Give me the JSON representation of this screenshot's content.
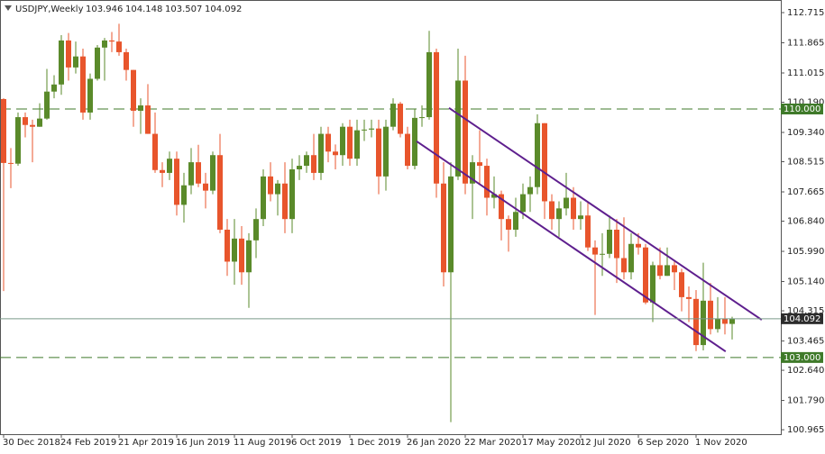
{
  "chart_data": {
    "type": "candlestick",
    "symbol": "USDJPY,Weekly",
    "categories": [
      "30 Dec 2018",
      null,
      null,
      null,
      null,
      null,
      null,
      null,
      "24 Feb 2019",
      null,
      null,
      null,
      null,
      null,
      null,
      null,
      "21 Apr 2019",
      null,
      null,
      null,
      null,
      null,
      null,
      null,
      "16 Jun 2019",
      null,
      null,
      null,
      null,
      null,
      null,
      null,
      "11 Aug 2019",
      null,
      null,
      null,
      null,
      null,
      null,
      null,
      "6 Oct 2019",
      null,
      null,
      null,
      null,
      null,
      null,
      null,
      "1 Dec 2019",
      null,
      null,
      null,
      null,
      null,
      null,
      null,
      "26 Jan 2020",
      null,
      null,
      null,
      null,
      null,
      null,
      null,
      "22 Mar 2020",
      null,
      null,
      null,
      null,
      null,
      null,
      null,
      "17 May 2020",
      null,
      null,
      null,
      null,
      null,
      null,
      null,
      "12 Jul 2020",
      null,
      null,
      null,
      null,
      null,
      null,
      null,
      "6 Sep 2020",
      null,
      null,
      null,
      null,
      null,
      null,
      null,
      "1 Nov 2020",
      null,
      null,
      null,
      null,
      null
    ],
    "open": [
      110.28,
      108.48,
      108.46,
      109.77,
      109.55,
      109.5,
      109.73,
      110.49,
      110.69,
      111.93,
      111.17,
      111.48,
      109.9,
      110.85,
      111.73,
      111.93,
      111.9,
      111.6,
      111.1,
      109.95,
      110.1,
      109.3,
      108.28,
      108.2,
      108.6,
      107.3,
      107.85,
      108.5,
      107.9,
      107.7,
      108.7,
      106.6,
      105.7,
      106.35,
      105.4,
      106.3,
      106.9,
      108.1,
      107.6,
      107.9,
      106.9,
      108.3,
      108.4,
      108.7,
      108.2,
      109.3,
      108.8,
      108.7,
      109.5,
      108.6,
      109.4,
      109.42,
      109.45,
      108.1,
      109.5,
      110.15,
      109.3,
      108.4,
      109.75,
      109.77,
      111.6,
      107.9,
      105.4,
      108.1,
      110.8,
      107.9,
      108.5,
      108.4,
      107.5,
      107.6,
      106.9,
      106.6,
      107.1,
      107.6,
      107.8,
      109.6,
      107.4,
      106.9,
      107.2,
      107.5,
      106.9,
      107.0,
      106.1,
      105.9,
      105.92,
      106.6,
      105.8,
      105.4,
      106.2,
      106.1,
      104.55,
      105.6,
      105.3,
      105.6,
      105.4,
      104.7,
      104.65,
      103.35,
      104.6,
      103.8,
      104.1,
      103.946
    ],
    "high": [
      110.3,
      108.9,
      109.9,
      109.9,
      109.7,
      110.16,
      111.13,
      110.95,
      112.08,
      112.14,
      111.9,
      111.7,
      111.0,
      111.8,
      112.0,
      112.17,
      112.4,
      111.7,
      111.1,
      110.3,
      110.7,
      109.9,
      108.5,
      108.8,
      108.8,
      108.2,
      108.9,
      108.99,
      108.2,
      108.8,
      109.3,
      106.9,
      106.9,
      106.7,
      106.5,
      107.2,
      108.3,
      108.5,
      108.0,
      108.5,
      108.6,
      108.7,
      108.8,
      109.3,
      109.5,
      109.5,
      109.0,
      109.6,
      109.7,
      109.7,
      109.7,
      109.7,
      109.7,
      109.7,
      110.3,
      110.2,
      109.5,
      110.0,
      110.1,
      112.2,
      111.7,
      108.5,
      108.5,
      111.7,
      111.5,
      108.7,
      109.4,
      108.6,
      108.1,
      107.7,
      107.0,
      107.5,
      107.9,
      108.1,
      109.85,
      109.6,
      107.6,
      107.4,
      108.2,
      107.8,
      107.4,
      107.4,
      106.3,
      106.5,
      107.0,
      106.9,
      106.95,
      106.5,
      106.5,
      106.2,
      105.7,
      106.1,
      106.1,
      105.7,
      105.5,
      105.0,
      104.9,
      105.67,
      105.1,
      104.7,
      104.7,
      104.148
    ],
    "low": [
      104.87,
      107.77,
      108.4,
      109.2,
      108.5,
      109.5,
      109.7,
      110.3,
      110.4,
      110.8,
      111.0,
      109.7,
      109.7,
      110.8,
      110.8,
      111.6,
      111.5,
      110.8,
      109.5,
      109.3,
      109.3,
      108.2,
      107.8,
      108.0,
      107.0,
      106.8,
      107.6,
      107.8,
      107.2,
      107.6,
      106.5,
      105.3,
      105.05,
      105.05,
      104.4,
      105.8,
      106.7,
      107.4,
      107.0,
      106.5,
      106.5,
      108.0,
      108.2,
      108.0,
      108.0,
      108.5,
      108.3,
      108.4,
      108.4,
      108.4,
      109.1,
      109.2,
      107.6,
      107.7,
      109.4,
      109.2,
      108.3,
      108.3,
      109.5,
      109.7,
      107.5,
      105.0,
      101.18,
      108.0,
      107.6,
      106.9,
      107.9,
      107.0,
      107.2,
      106.3,
      105.98,
      106.4,
      106.9,
      107.1,
      107.6,
      106.9,
      106.6,
      106.4,
      107.0,
      106.6,
      106.6,
      106.0,
      104.2,
      105.3,
      105.8,
      105.1,
      105.2,
      105.2,
      105.9,
      104.5,
      104.0,
      105.2,
      105.3,
      104.9,
      104.3,
      104.0,
      103.18,
      103.2,
      103.65,
      103.7,
      103.65,
      103.507
    ],
    "close": [
      108.48,
      108.46,
      109.77,
      109.55,
      109.5,
      109.73,
      110.49,
      110.69,
      111.93,
      111.17,
      111.48,
      109.9,
      110.85,
      111.73,
      111.93,
      111.9,
      111.6,
      111.1,
      109.95,
      110.1,
      109.3,
      108.28,
      108.2,
      108.6,
      107.3,
      107.85,
      108.5,
      107.9,
      107.7,
      108.7,
      106.6,
      105.7,
      106.35,
      105.4,
      106.3,
      106.9,
      108.1,
      107.6,
      107.9,
      106.9,
      108.3,
      108.4,
      108.7,
      108.2,
      109.3,
      108.8,
      108.7,
      109.5,
      108.6,
      109.4,
      109.42,
      109.45,
      108.1,
      109.5,
      110.15,
      109.3,
      108.4,
      109.75,
      109.77,
      111.6,
      107.9,
      105.4,
      108.1,
      110.8,
      107.9,
      108.5,
      108.4,
      107.5,
      107.6,
      106.9,
      106.6,
      107.1,
      107.6,
      107.8,
      109.6,
      107.4,
      106.9,
      107.2,
      107.5,
      106.9,
      107.0,
      106.1,
      105.9,
      105.92,
      106.6,
      105.8,
      105.4,
      106.2,
      106.1,
      104.55,
      105.6,
      105.3,
      105.6,
      105.4,
      104.7,
      104.65,
      103.35,
      104.6,
      103.8,
      104.1,
      103.95,
      104.092
    ],
    "up_color": "#5a8a2a",
    "down_color": "#e8552c",
    "ylim": [
      100.84,
      113.07
    ],
    "yticks": [
      112.715,
      111.865,
      111.015,
      {
        "value": 110.19,
        "label": "110.190"
      },
      {
        "value": 109.34,
        "label": "109.340"
      },
      108.515,
      107.665,
      {
        "value": 106.84,
        "label": "106.840"
      },
      {
        "value": 105.99,
        "label": "105.990"
      },
      {
        "value": 105.14,
        "label": "105.140"
      },
      104.315,
      103.465,
      {
        "value": 102.64,
        "label": "102.640"
      },
      {
        "value": 101.79,
        "label": "101.790"
      },
      100.965
    ],
    "hlines": [
      {
        "value": 110,
        "label": "110.000",
        "color": "#3f7a2a"
      },
      {
        "value": 103,
        "label": "103.000",
        "color": "#3f7a2a"
      }
    ],
    "trendlines": [
      {
        "color": "#5e1f8e",
        "points": [
          [
            61.75,
            110.03
          ],
          [
            105.1,
            104.06
          ]
        ]
      },
      {
        "color": "#5e1f8e",
        "points": [
          [
            57.25,
            109.09
          ],
          [
            100.1,
            103.17
          ]
        ]
      }
    ]
  }
}
